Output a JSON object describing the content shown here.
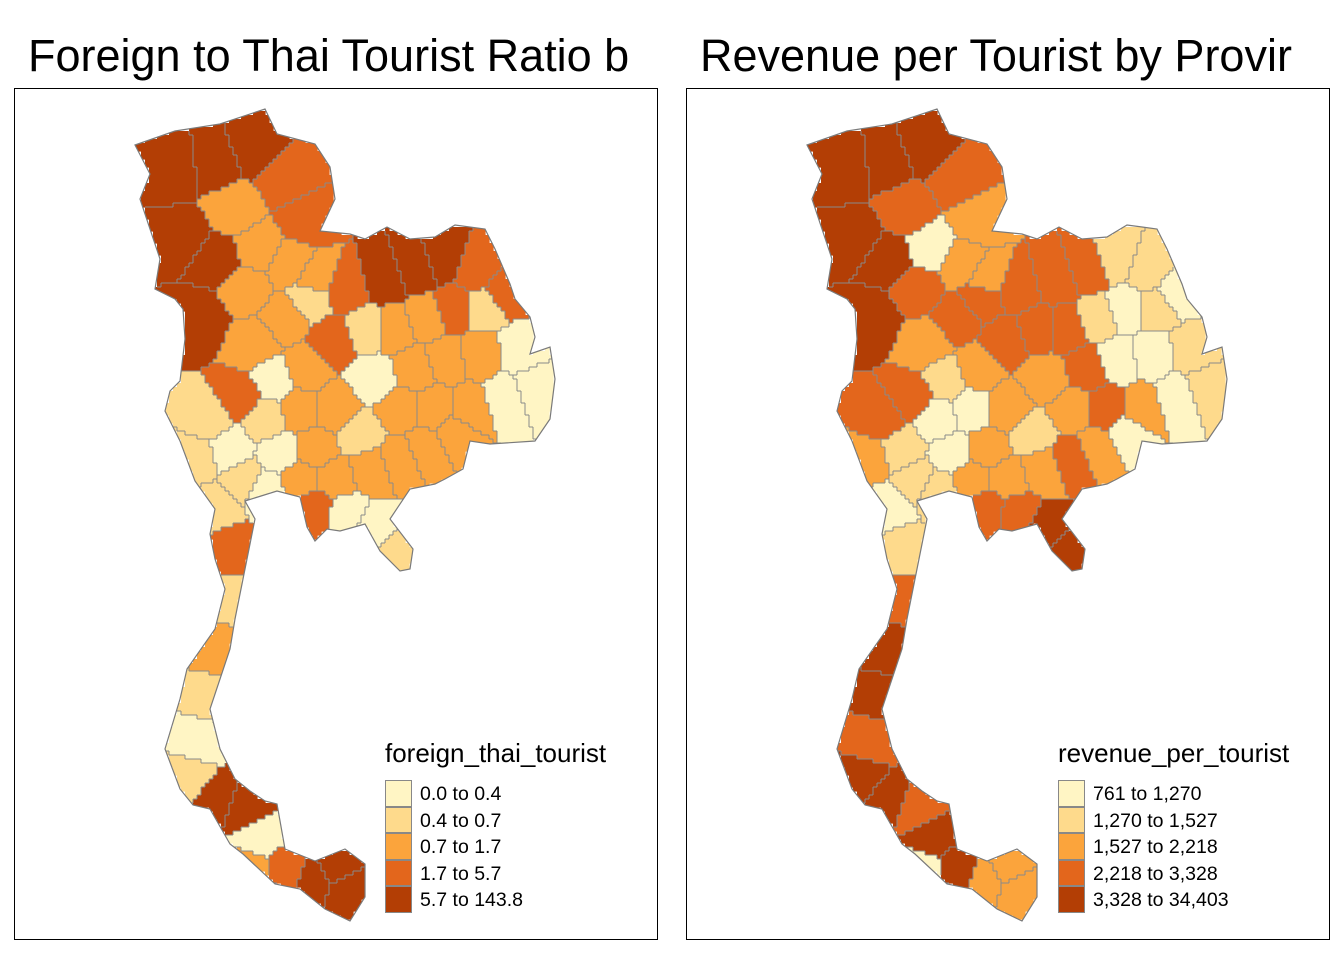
{
  "panels": [
    {
      "title": "Foreign to Thai Tourist Ratio b",
      "legend": {
        "title": "foreign_thai_tourist",
        "items": [
          {
            "label": "0.0 to 0.4",
            "color": "#FFF5C4"
          },
          {
            "label": "0.4 to 0.7",
            "color": "#FEDA8C"
          },
          {
            "label": "0.7 to 1.7",
            "color": "#FBA43C"
          },
          {
            "label": "1.7 to 5.7",
            "color": "#E3661C"
          },
          {
            "label": "5.7 to 143.8",
            "color": "#B33E05"
          }
        ]
      }
    },
    {
      "title": "Revenue per Tourist by Provir",
      "legend": {
        "title": "revenue_per_tourist",
        "items": [
          {
            "label": "761 to 1,270",
            "color": "#FFF5C4"
          },
          {
            "label": "1,270 to 1,527",
            "color": "#FEDA8C"
          },
          {
            "label": "1,527 to 2,218",
            "color": "#FBA43C"
          },
          {
            "label": "2,218 to 3,328",
            "color": "#E3661C"
          },
          {
            "label": "3,328 to 34,403",
            "color": "#B33E05"
          }
        ]
      }
    }
  ]
}
